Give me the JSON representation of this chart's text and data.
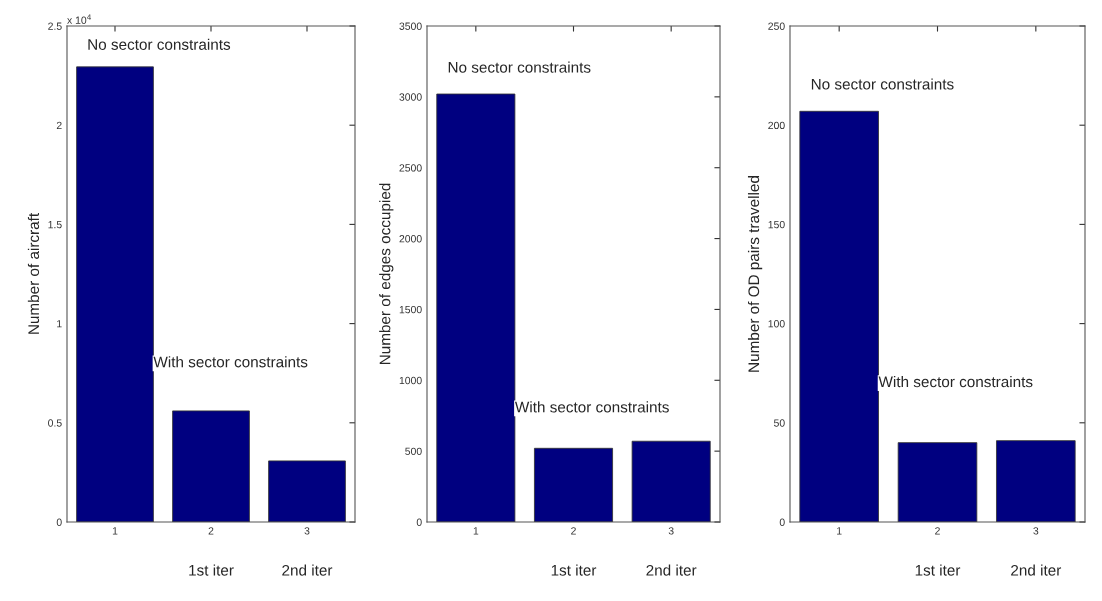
{
  "chart_data": [
    {
      "type": "bar",
      "categories": [
        "1",
        "2",
        "3"
      ],
      "values": [
        2.294,
        0.56,
        0.308
      ],
      "color": "#000080",
      "ylabel": "Number of aircraft",
      "ylim": [
        0,
        2.5
      ],
      "yticks": [
        0,
        0.5,
        1,
        1.5,
        2,
        2.5
      ],
      "grid": false,
      "annotations": [
        "x 10$^{4}$",
        "No sector constraints",
        "With sector constraints",
        "1st iter",
        "2nd iter"
      ]
    },
    {
      "type": "bar",
      "categories": [
        "1",
        "2",
        "3"
      ],
      "values": [
        3020,
        520,
        570
      ],
      "color": "#000080",
      "ylabel": "Number of edges occupied",
      "ylim": [
        0,
        3500
      ],
      "yticks": [
        0,
        500,
        1000,
        1500,
        2000,
        2500,
        3000,
        3500
      ],
      "grid": false,
      "annotations": [
        "No sector constraints",
        "With sector constraints",
        "1st iter",
        "2nd iter"
      ]
    },
    {
      "type": "bar",
      "categories": [
        "1",
        "2",
        "3"
      ],
      "values": [
        207,
        40,
        41
      ],
      "color": "#000080",
      "ylabel": "Number of OD pairs travelled",
      "ylim": [
        0,
        250
      ],
      "yticks": [
        0,
        50,
        100,
        150,
        200,
        250
      ],
      "grid": false,
      "annotations": [
        "No sector constraints",
        "With sector constraints",
        "1st iter",
        "2nd iter"
      ]
    }
  ]
}
